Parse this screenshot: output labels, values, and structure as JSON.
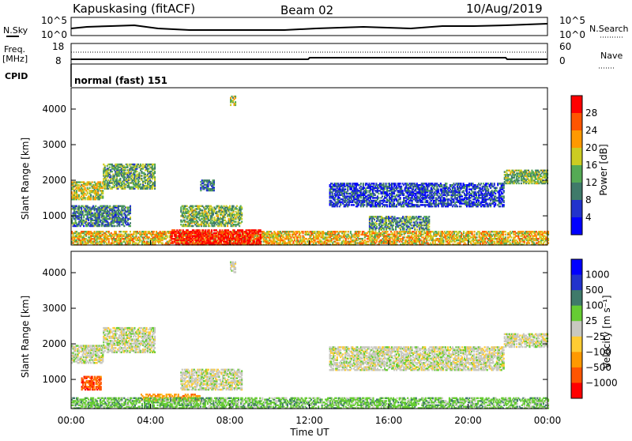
{
  "header": {
    "station": "Kapuskasing (fitACF)",
    "beam": "Beam 02",
    "date": "10/Aug/2019"
  },
  "labels": {
    "nsky": "N.Sky",
    "nsearch": "N.Search",
    "freq": "Freq.",
    "freq_unit": "[MHz]",
    "cpid": "CPID",
    "nave": "Nave",
    "mode": "normal (fast) 151",
    "noise_top_left": "10^5",
    "noise_bottom_left": "10^0",
    "noise_top_right": "10^5",
    "noise_bottom_right": "10^0",
    "freq_top": "18",
    "freq_bottom": "8",
    "nave_top": "60",
    "nave_bottom": "0",
    "power_label": "Power [dB]",
    "velocity_label": "Velocity [m s⁻¹]"
  },
  "colors": {
    "power": [
      "#0000ff",
      "#2233cc",
      "#3f7a6a",
      "#55aa55",
      "#cccc22",
      "#ff9900",
      "#ff5500",
      "#ff0000"
    ],
    "velocity": [
      "#ff0000",
      "#ff5500",
      "#ff9900",
      "#ffcc33",
      "#c8c8c0",
      "#66cc33",
      "#3f7a6a",
      "#2233cc",
      "#0000ff"
    ]
  },
  "chart_data": [
    {
      "type": "heatmap",
      "title": "Power",
      "ylabel": "Slant Range [km]",
      "xlabel": "Time UT",
      "ylim": [
        180,
        4600
      ],
      "xlim": [
        0,
        24
      ],
      "yticks": [
        1000,
        2000,
        3000,
        4000
      ],
      "xticks": [
        "00:00",
        "04:00",
        "08:00",
        "12:00",
        "16:00",
        "20:00",
        "00:00"
      ],
      "colorbar": {
        "label": "Power [dB]",
        "ticks": [
          "4",
          "8",
          "12",
          "16",
          "20",
          "24",
          "28"
        ],
        "range": [
          0,
          30
        ]
      },
      "regions": [
        {
          "t0": 0.0,
          "t1": 1.6,
          "r0": 1450,
          "r1": 1950,
          "level": 0.55
        },
        {
          "t0": 1.6,
          "t1": 4.2,
          "r0": 1750,
          "r1": 2450,
          "level": 0.42
        },
        {
          "t0": 0.0,
          "t1": 3.0,
          "r0": 700,
          "r1": 1300,
          "level": 0.32
        },
        {
          "t0": 5.5,
          "t1": 8.6,
          "r0": 700,
          "r1": 1300,
          "level": 0.45
        },
        {
          "t0": 6.5,
          "t1": 7.2,
          "r0": 1700,
          "r1": 2000,
          "level": 0.3
        },
        {
          "t0": 0.0,
          "t1": 24.0,
          "r0": 180,
          "r1": 550,
          "level": 0.62
        },
        {
          "t0": 5.0,
          "t1": 9.5,
          "r0": 180,
          "r1": 600,
          "level": 0.95
        },
        {
          "t0": 13.0,
          "t1": 21.8,
          "r0": 1250,
          "r1": 1900,
          "level": 0.2
        },
        {
          "t0": 15.0,
          "t1": 18.0,
          "r0": 600,
          "r1": 1000,
          "level": 0.38
        },
        {
          "t0": 21.8,
          "t1": 24.0,
          "r0": 1900,
          "r1": 2300,
          "level": 0.45
        },
        {
          "t0": 8.0,
          "t1": 8.3,
          "r0": 4100,
          "r1": 4350,
          "level": 0.5
        }
      ]
    },
    {
      "type": "heatmap",
      "title": "Velocity",
      "ylabel": "Slant Range [km]",
      "xlabel": "Time UT",
      "ylim": [
        180,
        4600
      ],
      "xlim": [
        0,
        24
      ],
      "yticks": [
        1000,
        2000,
        3000,
        4000
      ],
      "xticks": [
        "00:00",
        "04:00",
        "08:00",
        "12:00",
        "16:00",
        "20:00",
        "00:00"
      ],
      "colorbar": {
        "label": "Velocity [m s⁻¹]",
        "ticks": [
          "1000",
          "500",
          "100",
          "25",
          "−25",
          "−100",
          "−500",
          "−1000"
        ]
      },
      "regions": [
        {
          "t0": 0.0,
          "t1": 1.6,
          "r0": 1450,
          "r1": 1950,
          "level": 4
        },
        {
          "t0": 1.6,
          "t1": 4.2,
          "r0": 1750,
          "r1": 2450,
          "level": 4
        },
        {
          "t0": 0.5,
          "t1": 1.5,
          "r0": 700,
          "r1": 1100,
          "level": 1
        },
        {
          "t0": 5.5,
          "t1": 8.6,
          "r0": 700,
          "r1": 1300,
          "level": 4
        },
        {
          "t0": 3.5,
          "t1": 6.5,
          "r0": 400,
          "r1": 600,
          "level": 2
        },
        {
          "t0": 0.0,
          "t1": 24.0,
          "r0": 180,
          "r1": 500,
          "level": 5
        },
        {
          "t0": 13.0,
          "t1": 21.8,
          "r0": 1250,
          "r1": 1900,
          "level": 4
        },
        {
          "t0": 21.8,
          "t1": 24.0,
          "r0": 1900,
          "r1": 2300,
          "level": 4
        },
        {
          "t0": 8.0,
          "t1": 8.3,
          "r0": 4000,
          "r1": 4300,
          "level": 4
        }
      ]
    }
  ]
}
